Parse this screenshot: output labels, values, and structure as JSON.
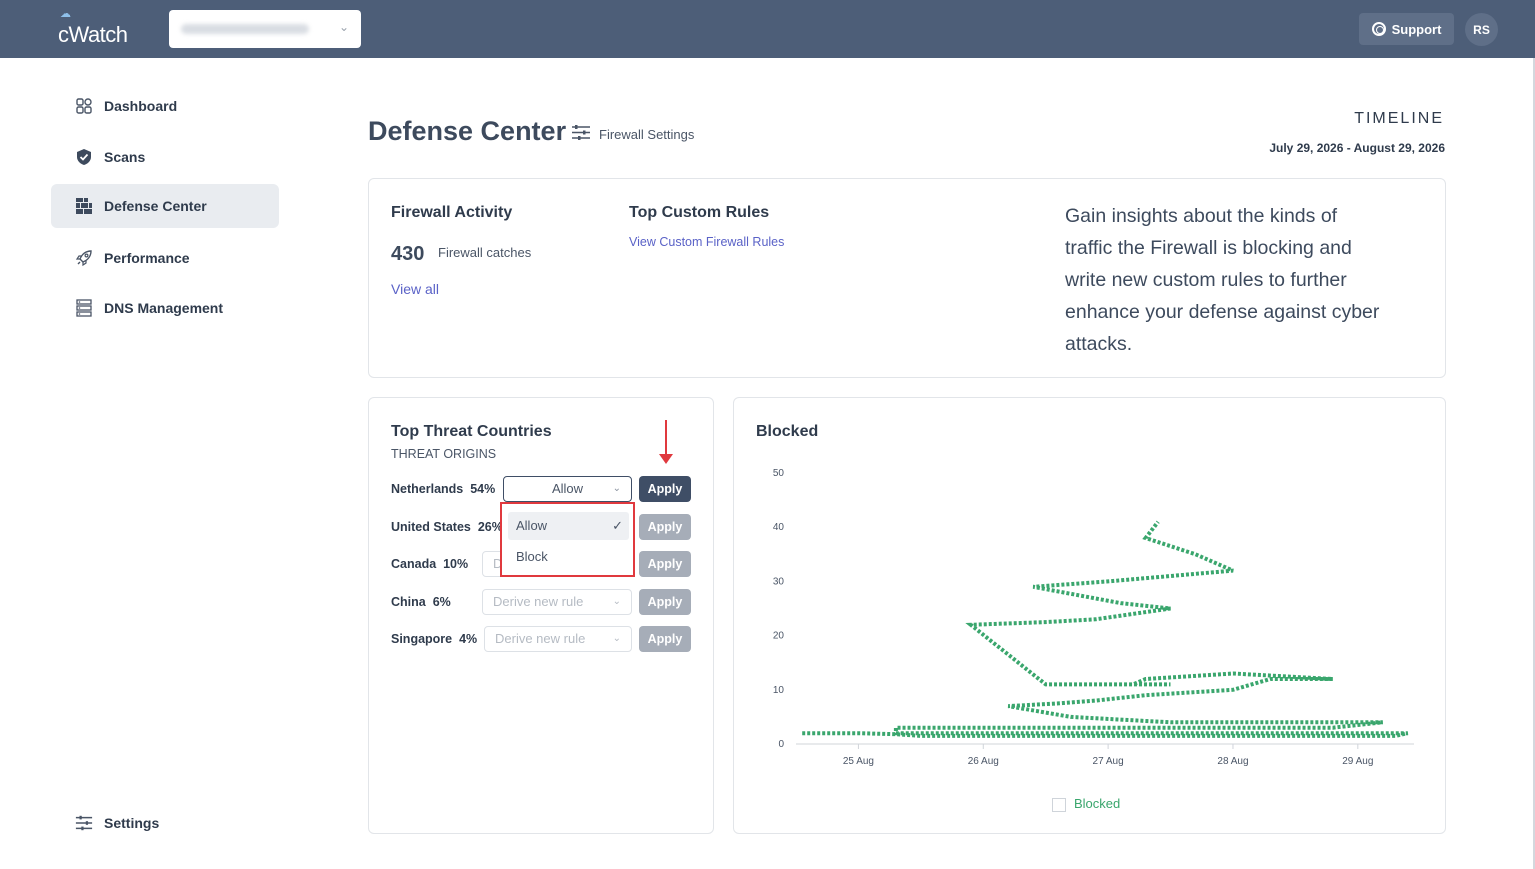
{
  "topbar": {
    "logo": "cWatch",
    "site_selector_value": "",
    "support_label": "Support",
    "avatar_initials": "RS"
  },
  "sidebar": {
    "items": [
      {
        "label": "Dashboard",
        "icon": "dashboard-icon"
      },
      {
        "label": "Scans",
        "icon": "shield-icon"
      },
      {
        "label": "Defense Center",
        "icon": "brick-wall-icon",
        "active": true
      },
      {
        "label": "Performance",
        "icon": "rocket-icon"
      },
      {
        "label": "DNS Management",
        "icon": "server-icon"
      }
    ],
    "settings_label": "Settings"
  },
  "header": {
    "title": "Defense Center",
    "firewall_settings": "Firewall Settings",
    "timeline_label": "TIMELINE",
    "timeline_range": "July 29, 2026 - August 29, 2026"
  },
  "summary": {
    "firewall_activity_title": "Firewall Activity",
    "catches_count": "430",
    "catches_label": "Firewall catches",
    "view_all": "View all",
    "top_rules_title": "Top Custom Rules",
    "view_rules_link": "View Custom Firewall Rules",
    "insight": "Gain insights about the kinds of traffic the Firewall is blocking and write new custom rules to further enhance your defense against cyber attacks."
  },
  "threats": {
    "title": "Top Threat Countries",
    "subtitle": "THREAT ORIGINS",
    "apply_label": "Apply",
    "derive_placeholder": "Derive new rule",
    "countries": [
      {
        "name": "Netherlands",
        "pct": "54%",
        "selected": "Allow"
      },
      {
        "name": "United States",
        "pct": "26%"
      },
      {
        "name": "Canada",
        "pct": "10%"
      },
      {
        "name": "China",
        "pct": "6%"
      },
      {
        "name": "Singapore",
        "pct": "4%"
      }
    ],
    "dropdown_options": [
      "Allow",
      "Block"
    ],
    "dropdown_selected": "Allow",
    "canada_placeholder_partial": "D"
  },
  "colors": {
    "topbar": "#4d5e78",
    "accent_link": "#5a62c7",
    "series": "#3aa66d",
    "highlight": "#e0393e"
  },
  "chart_data": {
    "type": "line",
    "title": "Blocked",
    "xlabel": "",
    "ylabel": "",
    "ylim": [
      0,
      50
    ],
    "yticks": [
      "0",
      "10",
      "20",
      "30",
      "40",
      "50"
    ],
    "xticks": [
      "25 Aug",
      "26 Aug",
      "27 Aug",
      "28 Aug",
      "29 Aug"
    ],
    "legend": "bottom",
    "series": [
      {
        "name": "Blocked",
        "line_style": "dotted",
        "x": [
          24.55,
          24.8,
          25.0,
          25.3,
          25.5,
          25.7,
          26.0,
          26.3,
          26.6,
          26.9,
          27.2,
          27.5,
          27.8,
          28.1,
          28.4,
          28.7,
          29.0,
          29.3,
          29.4,
          29.2,
          28.9,
          28.6,
          28.3,
          28.0,
          27.7,
          27.4,
          27.1,
          26.8,
          26.5,
          26.2,
          25.9,
          25.6,
          25.3,
          25.3,
          25.8,
          26.4,
          27.0,
          27.6,
          28.2,
          28.8,
          29.2,
          29.0,
          28.2,
          27.5,
          26.7,
          26.2,
          26.6,
          26.9,
          27.3,
          28.0,
          28.3,
          28.8,
          28.0,
          27.3,
          27.2,
          27.5,
          27.1,
          26.5,
          25.9,
          26.5,
          26.9,
          27.2,
          27.5,
          27.1,
          26.4,
          27.0,
          28.0,
          27.7,
          27.3,
          27.4
        ],
        "y": [
          2,
          2,
          2,
          1.8,
          1.5,
          1.5,
          1.5,
          1.5,
          1.5,
          1.5,
          1.5,
          1.5,
          1.5,
          1.5,
          1.5,
          1.5,
          1.5,
          1.5,
          2,
          2,
          2,
          2,
          2,
          2,
          2,
          2,
          2,
          2,
          2,
          2,
          2,
          2,
          2,
          3,
          3,
          3,
          3,
          3,
          3,
          3,
          4,
          4,
          4,
          4,
          5,
          7,
          7.5,
          8,
          9,
          10,
          12,
          12,
          13,
          12,
          11,
          11,
          11,
          11,
          22,
          22.5,
          23,
          24,
          25,
          26,
          29,
          30,
          32,
          35,
          38,
          41
        ]
      }
    ]
  }
}
